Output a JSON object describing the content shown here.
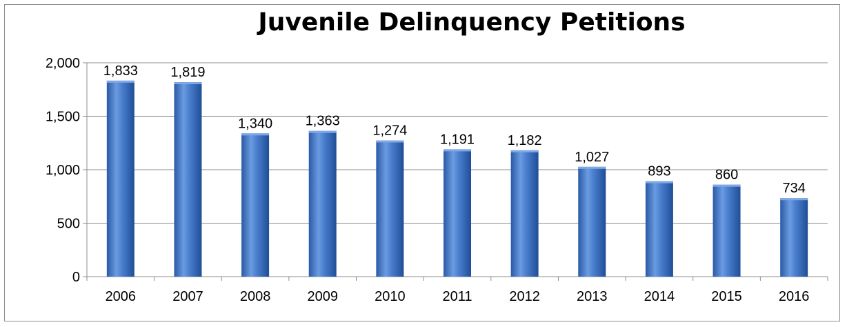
{
  "chart_data": {
    "type": "bar",
    "title": "Juvenile Delinquency Petitions",
    "categories": [
      "2006",
      "2007",
      "2008",
      "2009",
      "2010",
      "2011",
      "2012",
      "2013",
      "2014",
      "2015",
      "2016"
    ],
    "series": [
      {
        "values": [
          1833,
          1819,
          1340,
          1363,
          1274,
          1191,
          1182,
          1027,
          893,
          860,
          734
        ]
      }
    ],
    "data_labels": [
      "1,833",
      "1,819",
      "1,340",
      "1,363",
      "1,274",
      "1,191",
      "1,182",
      "1,027",
      "893",
      "860",
      "734"
    ],
    "ylim": [
      0,
      2000
    ],
    "yticks": [
      0,
      500,
      1000,
      1500,
      2000
    ],
    "ytick_labels": [
      "0",
      "500",
      "1,000",
      "1,500",
      "2,000"
    ],
    "xlabel": "",
    "ylabel": "",
    "grid": true,
    "legend": "none",
    "colors": {
      "bar": "#3f73c2",
      "bar_light": "#7fa8e6",
      "bar_dark": "#1f4e96",
      "grid": "#8c8c8c"
    }
  }
}
